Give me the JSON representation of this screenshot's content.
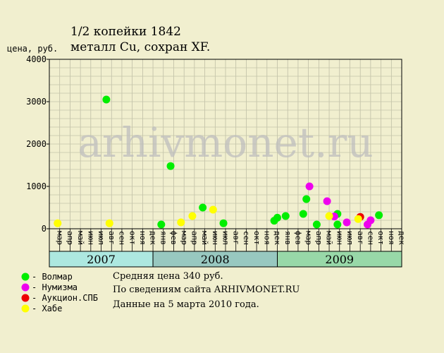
{
  "chart_data": {
    "type": "scatter",
    "title_line1": "1/2 копейки 1842",
    "title_line2": "металл Cu, сохран XF.",
    "ylabel": "цена, руб.",
    "watermark": "arhivmonet.ru",
    "ylim": [
      0,
      4000
    ],
    "yticks": [
      0,
      1000,
      2000,
      3000,
      4000
    ],
    "months": [
      "мар",
      "апр",
      "май",
      "июн",
      "июл",
      "авг",
      "сен",
      "окт",
      "ноя",
      "дек",
      "янв",
      "фев",
      "мар",
      "апр",
      "май",
      "июн",
      "июл",
      "авг",
      "сен",
      "окт",
      "ноя",
      "дек",
      "янв",
      "фев",
      "мар",
      "апр",
      "май",
      "июн",
      "июл",
      "авг",
      "сен",
      "окт",
      "ноя",
      "дек"
    ],
    "years": [
      {
        "label": "2007",
        "start": 0,
        "end": 10,
        "color": "#ade8e0"
      },
      {
        "label": "2008",
        "start": 10,
        "end": 22,
        "color": "#98c8c0"
      },
      {
        "label": "2009",
        "start": 22,
        "end": 34,
        "color": "#98d8a8"
      }
    ],
    "series": [
      {
        "name": "Волмар",
        "color": "#00ee00",
        "points": [
          {
            "x": 5.0,
            "y": 3050
          },
          {
            "x": 10.3,
            "y": 100
          },
          {
            "x": 11.2,
            "y": 1480
          },
          {
            "x": 14.3,
            "y": 500
          },
          {
            "x": 16.3,
            "y": 130
          },
          {
            "x": 21.2,
            "y": 190
          },
          {
            "x": 21.5,
            "y": 260
          },
          {
            "x": 22.3,
            "y": 300
          },
          {
            "x": 24.0,
            "y": 350
          },
          {
            "x": 24.3,
            "y": 700
          },
          {
            "x": 25.3,
            "y": 100
          },
          {
            "x": 27.3,
            "y": 350
          },
          {
            "x": 27.3,
            "y": 100
          },
          {
            "x": 31.3,
            "y": 320
          }
        ]
      },
      {
        "name": "Нумизма",
        "color": "#ee00ee",
        "points": [
          {
            "x": 24.6,
            "y": 1000
          },
          {
            "x": 26.3,
            "y": 650
          },
          {
            "x": 27.0,
            "y": 290
          },
          {
            "x": 28.2,
            "y": 150
          },
          {
            "x": 30.2,
            "y": 100
          },
          {
            "x": 30.5,
            "y": 200
          }
        ]
      },
      {
        "name": "Аукцион.СПБ",
        "color": "#ee0000",
        "points": [
          {
            "x": 29.5,
            "y": 280
          }
        ]
      },
      {
        "name": "Хабе",
        "color": "#ffff00",
        "points": [
          {
            "x": 0.3,
            "y": 130
          },
          {
            "x": 5.3,
            "y": 130
          },
          {
            "x": 12.2,
            "y": 150
          },
          {
            "x": 13.3,
            "y": 300
          },
          {
            "x": 15.3,
            "y": 450
          },
          {
            "x": 26.5,
            "y": 300
          },
          {
            "x": 29.3,
            "y": 230
          }
        ]
      }
    ],
    "legend_position": "bottom-left",
    "grid": true
  },
  "info": {
    "avg_price": "Средняя цена 340 руб.",
    "source": "По сведениям сайта ARHIVMONET.RU",
    "date": "Данные на 5 марта 2010 года."
  }
}
